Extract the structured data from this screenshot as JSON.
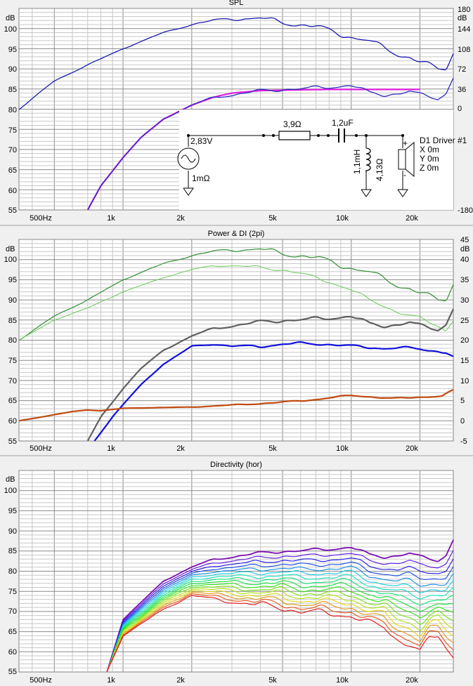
{
  "colors": {
    "spl_line": "#1b1bb4",
    "target_line": "#e020e0",
    "filtered_line": "#2b2bbf",
    "power_dark_green": "#2f8f2f",
    "power_light_green": "#66cc55",
    "power_grey": "#606060",
    "power_blue": "#1010dd",
    "di_orange": "#c04a10",
    "grid_major": "#8a8a8a",
    "grid_minor": "#c8c8c8"
  },
  "charts": [
    {
      "id": "spl",
      "title": "SPL",
      "left_unit": "dB",
      "right_unit": "dB",
      "left_ticks": [
        "100",
        "95",
        "90",
        "85",
        "80",
        "75",
        "70",
        "65",
        "60",
        "55"
      ],
      "right_ticks": [
        "180",
        "144",
        "108",
        "72",
        "36",
        "0",
        "-180"
      ],
      "x_labels": [
        "500Hz",
        "1k",
        "2k",
        "5k",
        "10k",
        "20k"
      ]
    },
    {
      "id": "power",
      "title": "Power & DI (2pi)",
      "left_unit": "dB",
      "right_unit": "dB",
      "left_ticks": [
        "100",
        "95",
        "90",
        "85",
        "80",
        "75",
        "70",
        "65",
        "60",
        "55"
      ],
      "right_ticks": [
        "45",
        "40",
        "35",
        "30",
        "25",
        "20",
        "15",
        "10",
        "5",
        "0",
        "-5"
      ],
      "x_labels": [
        "500Hz",
        "1k",
        "2k",
        "5k",
        "10k",
        "20k"
      ]
    },
    {
      "id": "directivity",
      "title": "Directivity (hor)",
      "left_unit": "dB",
      "left_ticks": [
        "100",
        "95",
        "90",
        "85",
        "80",
        "75",
        "70",
        "65",
        "60",
        "55"
      ],
      "x_labels": [
        "500Hz",
        "1k",
        "2k",
        "5k",
        "10k",
        "20k"
      ]
    }
  ],
  "schematic": {
    "source_voltage": "2,83V",
    "source_resistance": "1mΩ",
    "resistor": "3,9Ω",
    "capacitor": "1,2uF",
    "inductor": "1,1mH",
    "inductor_resistance": "4,13Ω",
    "driver_name": "D1 Driver #1",
    "driver_x": "X 0m",
    "driver_y": "Y 0m",
    "driver_z": "Z 0m",
    "plus": "+",
    "minus": "-"
  },
  "chart_data": [
    {
      "type": "line",
      "title": "SPL",
      "xscale": "log",
      "xlim": [
        350,
        28000
      ],
      "ylim": [
        55,
        105
      ],
      "y2lim": [
        -180,
        180
      ],
      "ylabel": "dB",
      "grid": true,
      "series": [
        {
          "key": "raw",
          "color": "#1b1bb4",
          "x": [
            350,
            500,
            700,
            1000,
            1500,
            2000,
            2500,
            3000,
            4000,
            5000,
            6000,
            7000,
            8000,
            9000,
            10000,
            12000,
            14000,
            16000,
            18000,
            20000,
            22000,
            24000,
            26000,
            28000
          ],
          "values": [
            80,
            87,
            91,
            95,
            99,
            101,
            102,
            102.5,
            102.5,
            101.5,
            101,
            100.5,
            99.5,
            98.5,
            98,
            97,
            95,
            93.5,
            93,
            92,
            91,
            89.5,
            90,
            94
          ]
        },
        {
          "key": "target",
          "color": "#e020e0",
          "x": [
            700,
            800,
            1000,
            1200,
            1500,
            2000,
            2500,
            3000,
            4000,
            6000,
            8000,
            10000,
            15000,
            20000
          ],
          "values": [
            55,
            61,
            68,
            73,
            77.5,
            81,
            83,
            84,
            84.6,
            84.8,
            84.9,
            84.9,
            84.9,
            84.9
          ]
        },
        {
          "key": "filtered",
          "color": "#2b2bbf",
          "x": [
            700,
            800,
            1000,
            1200,
            1500,
            2000,
            2500,
            3000,
            4000,
            5000,
            6000,
            8000,
            10000,
            11000,
            12000,
            14000,
            16000,
            18000,
            20000,
            22000,
            24000,
            26000,
            28000
          ],
          "values": [
            55,
            61,
            68,
            73,
            77.5,
            81,
            83,
            83.5,
            84.5,
            85,
            85,
            85.5,
            86,
            85,
            84,
            83.5,
            84,
            84.5,
            83.5,
            83,
            82.5,
            84,
            88
          ]
        }
      ]
    },
    {
      "type": "line",
      "title": "Power & DI (2pi)",
      "xscale": "log",
      "xlim": [
        350,
        28000
      ],
      "ylim": [
        55,
        105
      ],
      "y2lim": [
        -5,
        45
      ],
      "ylabel": "dB",
      "grid": true,
      "series": [
        {
          "key": "on_axis",
          "color": "#2f8f2f",
          "x": [
            350,
            500,
            700,
            1000,
            1500,
            2000,
            2500,
            3000,
            4000,
            5000,
            6000,
            7000,
            8000,
            9000,
            10000,
            12000,
            14000,
            16000,
            18000,
            20000,
            22000,
            24000,
            26000,
            28000
          ],
          "values": [
            80,
            86,
            90,
            95,
            99,
            101,
            102,
            102.5,
            102.5,
            101.5,
            101,
            100.5,
            99.5,
            98.5,
            98,
            97,
            95,
            93.5,
            93,
            92,
            91,
            89.5,
            90,
            94
          ]
        },
        {
          "key": "listening_window",
          "color": "#66cc55",
          "x": [
            350,
            500,
            700,
            1000,
            1500,
            2000,
            2500,
            3000,
            4000,
            5000,
            6000,
            7000,
            8000,
            10000,
            12000,
            14000,
            16000,
            18000,
            20000,
            22000,
            24000,
            26000,
            28000
          ],
          "values": [
            80,
            85,
            88,
            92,
            95.5,
            97.5,
            98.5,
            98.5,
            98,
            97.5,
            96.5,
            95.5,
            94.5,
            92.5,
            90,
            88.5,
            87,
            86,
            85.5,
            84.5,
            83.5,
            82.5,
            85
          ]
        },
        {
          "key": "response",
          "color": "#606060",
          "x": [
            700,
            800,
            1000,
            1200,
            1500,
            2000,
            2500,
            3000,
            4000,
            5000,
            6000,
            8000,
            10000,
            11000,
            12000,
            14000,
            16000,
            18000,
            20000,
            22000,
            24000,
            26000,
            28000
          ],
          "values": [
            55,
            61,
            68,
            73,
            77.5,
            81,
            83,
            83.5,
            84.5,
            85,
            85,
            85.5,
            86,
            85,
            84,
            83.5,
            84,
            84.5,
            83.5,
            83,
            82.5,
            84,
            88
          ]
        },
        {
          "key": "power",
          "color": "#1010dd",
          "x": [
            750,
            900,
            1000,
            1200,
            1500,
            2000,
            2500,
            3000,
            4000,
            5000,
            6000,
            8000,
            10000,
            12000,
            14000,
            16000,
            18000,
            20000,
            22000,
            24000,
            26000,
            28000
          ],
          "values": [
            55,
            61,
            64,
            69,
            74,
            78.5,
            79,
            78.5,
            78.5,
            79,
            79.2,
            79,
            78.5,
            78.2,
            78,
            78.1,
            78,
            77.8,
            77.5,
            77.3,
            77,
            75.8
          ]
        },
        {
          "key": "di",
          "axis": "right",
          "color": "#c04a10",
          "x": [
            350,
            500,
            600,
            700,
            800,
            1000,
            1500,
            2000,
            3000,
            5000,
            7000,
            10000,
            12000,
            15000,
            20000,
            25000,
            28000
          ],
          "values": [
            0,
            1.5,
            2.3,
            2.7,
            2.5,
            3.1,
            3.3,
            3.4,
            3.9,
            4.6,
            5.3,
            6.3,
            6.0,
            5.5,
            5.9,
            6.1,
            7.6
          ]
        }
      ]
    },
    {
      "type": "line",
      "title": "Directivity (hor)",
      "xscale": "log",
      "xlim": [
        350,
        28000
      ],
      "ylim": [
        55,
        105
      ],
      "ylabel": "dB",
      "grid": true,
      "series_count": 16,
      "top_x": [
        850,
        1000,
        1500,
        2000,
        2500,
        3000,
        4000,
        5000,
        6000,
        8000,
        10000,
        11000,
        12000,
        14000,
        16000,
        18000,
        20000,
        22000,
        24000,
        26000,
        28000
      ],
      "top_values": [
        55,
        68,
        77.5,
        81,
        83,
        83.5,
        84.5,
        85,
        85,
        85.5,
        86,
        85,
        84,
        83.5,
        84,
        84.5,
        83.5,
        83,
        82.5,
        84,
        88
      ],
      "bottom_values": [
        55,
        64,
        70.5,
        74,
        73,
        72.5,
        71.5,
        71,
        70,
        69.5,
        69,
        68,
        67,
        66,
        63,
        62,
        60,
        63,
        64,
        61,
        59
      ]
    }
  ]
}
